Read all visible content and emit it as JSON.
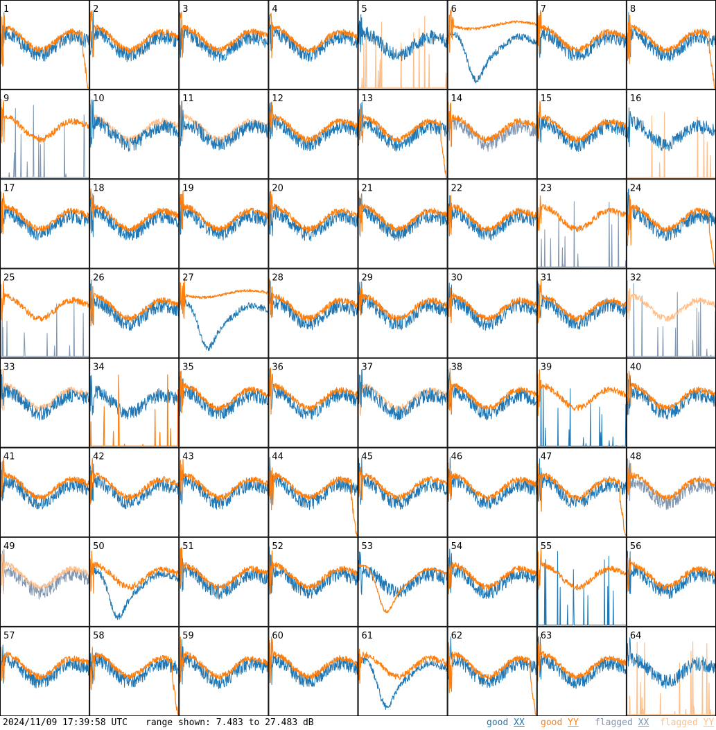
{
  "footer": {
    "timestamp": "2024/11/09 17:39:58 UTC",
    "range_text": "range shown: 7.483 to 27.483 dB",
    "legend": [
      {
        "word": "good",
        "pol": "XX",
        "color": "#1f77b4"
      },
      {
        "word": "good",
        "pol": "YY",
        "color": "#ff7f0e"
      },
      {
        "word": "flagged",
        "pol": "XX",
        "color": "#8096b0"
      },
      {
        "word": "flagged",
        "pol": "YY",
        "color": "#ffbf8a"
      }
    ]
  },
  "chart_data": {
    "type": "line",
    "layout": "8x8 small multiples",
    "ylim": [
      7.483,
      27.483
    ],
    "yunit": "dB",
    "series_kinds": [
      "good XX",
      "good YY",
      "flagged XX",
      "flagged YY"
    ],
    "panels": [
      {
        "id": "1",
        "xx": "good",
        "yy": "good",
        "xx_shape": "wavy",
        "yy_shape": "drop"
      },
      {
        "id": "2",
        "xx": "good",
        "yy": "good",
        "xx_shape": "wavy",
        "yy_shape": "wavy"
      },
      {
        "id": "3",
        "xx": "good",
        "yy": "good",
        "xx_shape": "wavy",
        "yy_shape": "wavy"
      },
      {
        "id": "4",
        "xx": "good",
        "yy": "good",
        "xx_shape": "wavy",
        "yy_shape": "wavy"
      },
      {
        "id": "5",
        "xx": "good",
        "yy": "flagged",
        "xx_shape": "wavy",
        "yy_shape": "spiky"
      },
      {
        "id": "6",
        "xx": "good",
        "yy": "good",
        "xx_shape": "dip",
        "yy_shape": "flat"
      },
      {
        "id": "7",
        "xx": "good",
        "yy": "good",
        "xx_shape": "wavy",
        "yy_shape": "wavy"
      },
      {
        "id": "8",
        "xx": "good",
        "yy": "good",
        "xx_shape": "wavy",
        "yy_shape": "drop"
      },
      {
        "id": "9",
        "xx": "flagged",
        "yy": "good",
        "xx_shape": "spiky",
        "yy_shape": "wavy"
      },
      {
        "id": "10",
        "xx": "good",
        "yy": "flagged",
        "xx_shape": "wavy",
        "yy_shape": "wavy"
      },
      {
        "id": "11",
        "xx": "good",
        "yy": "flagged",
        "xx_shape": "wavy",
        "yy_shape": "wavy"
      },
      {
        "id": "12",
        "xx": "good",
        "yy": "good",
        "xx_shape": "wavy",
        "yy_shape": "wavy"
      },
      {
        "id": "13",
        "xx": "good",
        "yy": "good",
        "xx_shape": "wavy",
        "yy_shape": "drop"
      },
      {
        "id": "14",
        "xx": "flagged",
        "yy": "good",
        "xx_shape": "wavy",
        "yy_shape": "wavy"
      },
      {
        "id": "15",
        "xx": "good",
        "yy": "good",
        "xx_shape": "wavy",
        "yy_shape": "wavy"
      },
      {
        "id": "16",
        "xx": "good",
        "yy": "flagged",
        "xx_shape": "wavy",
        "yy_shape": "spiky"
      },
      {
        "id": "17",
        "xx": "good",
        "yy": "good",
        "xx_shape": "wavy",
        "yy_shape": "wavy"
      },
      {
        "id": "18",
        "xx": "good",
        "yy": "good",
        "xx_shape": "wavy",
        "yy_shape": "wavy"
      },
      {
        "id": "19",
        "xx": "good",
        "yy": "good",
        "xx_shape": "wavy",
        "yy_shape": "wavy"
      },
      {
        "id": "20",
        "xx": "good",
        "yy": "good",
        "xx_shape": "wavy",
        "yy_shape": "wavy"
      },
      {
        "id": "21",
        "xx": "good",
        "yy": "good",
        "xx_shape": "wavy",
        "yy_shape": "wavy"
      },
      {
        "id": "22",
        "xx": "good",
        "yy": "good",
        "xx_shape": "wavy",
        "yy_shape": "wavy"
      },
      {
        "id": "23",
        "xx": "flagged",
        "yy": "good",
        "xx_shape": "spiky",
        "yy_shape": "wavy"
      },
      {
        "id": "24",
        "xx": "good",
        "yy": "good",
        "xx_shape": "wavy",
        "yy_shape": "drop"
      },
      {
        "id": "25",
        "xx": "flagged",
        "yy": "good",
        "xx_shape": "spiky",
        "yy_shape": "wavy"
      },
      {
        "id": "26",
        "xx": "good",
        "yy": "good",
        "xx_shape": "wavy",
        "yy_shape": "wavy"
      },
      {
        "id": "27",
        "xx": "good",
        "yy": "good",
        "xx_shape": "dip",
        "yy_shape": "flat"
      },
      {
        "id": "28",
        "xx": "good",
        "yy": "good",
        "xx_shape": "wavy",
        "yy_shape": "wavy"
      },
      {
        "id": "29",
        "xx": "good",
        "yy": "good",
        "xx_shape": "wavy",
        "yy_shape": "wavy"
      },
      {
        "id": "30",
        "xx": "good",
        "yy": "good",
        "xx_shape": "wavy",
        "yy_shape": "wavy"
      },
      {
        "id": "31",
        "xx": "good",
        "yy": "good",
        "xx_shape": "wavy",
        "yy_shape": "wavy"
      },
      {
        "id": "32",
        "xx": "flagged",
        "yy": "flagged",
        "xx_shape": "spiky",
        "yy_shape": "wavy"
      },
      {
        "id": "33",
        "xx": "good",
        "yy": "flagged",
        "xx_shape": "wavy",
        "yy_shape": "wavy"
      },
      {
        "id": "34",
        "xx": "good",
        "yy": "good",
        "xx_shape": "wavy",
        "yy_shape": "spiky"
      },
      {
        "id": "35",
        "xx": "good",
        "yy": "good",
        "xx_shape": "wavy",
        "yy_shape": "wavy"
      },
      {
        "id": "36",
        "xx": "good",
        "yy": "good",
        "xx_shape": "wavy",
        "yy_shape": "wavy"
      },
      {
        "id": "37",
        "xx": "good",
        "yy": "flagged",
        "xx_shape": "wavy",
        "yy_shape": "wavy"
      },
      {
        "id": "38",
        "xx": "good",
        "yy": "good",
        "xx_shape": "wavy",
        "yy_shape": "wavy"
      },
      {
        "id": "39",
        "xx": "good",
        "yy": "good",
        "xx_shape": "spiky",
        "yy_shape": "wavy"
      },
      {
        "id": "40",
        "xx": "good",
        "yy": "good",
        "xx_shape": "wavy",
        "yy_shape": "wavy"
      },
      {
        "id": "41",
        "xx": "good",
        "yy": "good",
        "xx_shape": "wavy",
        "yy_shape": "wavy"
      },
      {
        "id": "42",
        "xx": "good",
        "yy": "good",
        "xx_shape": "wavy",
        "yy_shape": "wavy"
      },
      {
        "id": "43",
        "xx": "good",
        "yy": "good",
        "xx_shape": "wavy",
        "yy_shape": "wavy"
      },
      {
        "id": "44",
        "xx": "good",
        "yy": "good",
        "xx_shape": "wavy",
        "yy_shape": "drop"
      },
      {
        "id": "45",
        "xx": "good",
        "yy": "good",
        "xx_shape": "wavy",
        "yy_shape": "wavy"
      },
      {
        "id": "46",
        "xx": "good",
        "yy": "good",
        "xx_shape": "wavy",
        "yy_shape": "wavy"
      },
      {
        "id": "47",
        "xx": "good",
        "yy": "good",
        "xx_shape": "wavy",
        "yy_shape": "drop"
      },
      {
        "id": "48",
        "xx": "flagged",
        "yy": "good",
        "xx_shape": "wavy",
        "yy_shape": "wavy"
      },
      {
        "id": "49",
        "xx": "flagged",
        "yy": "flagged",
        "xx_shape": "wavy",
        "yy_shape": "wavy"
      },
      {
        "id": "50",
        "xx": "good",
        "yy": "good",
        "xx_shape": "dip",
        "yy_shape": "wavy"
      },
      {
        "id": "51",
        "xx": "good",
        "yy": "good",
        "xx_shape": "wavy",
        "yy_shape": "wavy"
      },
      {
        "id": "52",
        "xx": "good",
        "yy": "good",
        "xx_shape": "wavy",
        "yy_shape": "wavy"
      },
      {
        "id": "53",
        "xx": "good",
        "yy": "good",
        "xx_shape": "wavy",
        "yy_shape": "dip"
      },
      {
        "id": "54",
        "xx": "good",
        "yy": "good",
        "xx_shape": "wavy",
        "yy_shape": "wavy"
      },
      {
        "id": "55",
        "xx": "good",
        "yy": "good",
        "xx_shape": "spiky",
        "yy_shape": "wavy"
      },
      {
        "id": "56",
        "xx": "good",
        "yy": "good",
        "xx_shape": "wavy",
        "yy_shape": "wavy"
      },
      {
        "id": "57",
        "xx": "good",
        "yy": "good",
        "xx_shape": "wavy",
        "yy_shape": "wavy"
      },
      {
        "id": "58",
        "xx": "good",
        "yy": "good",
        "xx_shape": "wavy",
        "yy_shape": "drop"
      },
      {
        "id": "59",
        "xx": "good",
        "yy": "good",
        "xx_shape": "wavy",
        "yy_shape": "wavy"
      },
      {
        "id": "60",
        "xx": "good",
        "yy": "good",
        "xx_shape": "wavy",
        "yy_shape": "wavy"
      },
      {
        "id": "61",
        "xx": "good",
        "yy": "good",
        "xx_shape": "dip",
        "yy_shape": "wavy"
      },
      {
        "id": "62",
        "xx": "good",
        "yy": "good",
        "xx_shape": "wavy",
        "yy_shape": "drop"
      },
      {
        "id": "63",
        "xx": "good",
        "yy": "good",
        "xx_shape": "wavy",
        "yy_shape": "wavy"
      },
      {
        "id": "64",
        "xx": "good",
        "yy": "flagged",
        "xx_shape": "wavy",
        "yy_shape": "spiky"
      }
    ]
  }
}
